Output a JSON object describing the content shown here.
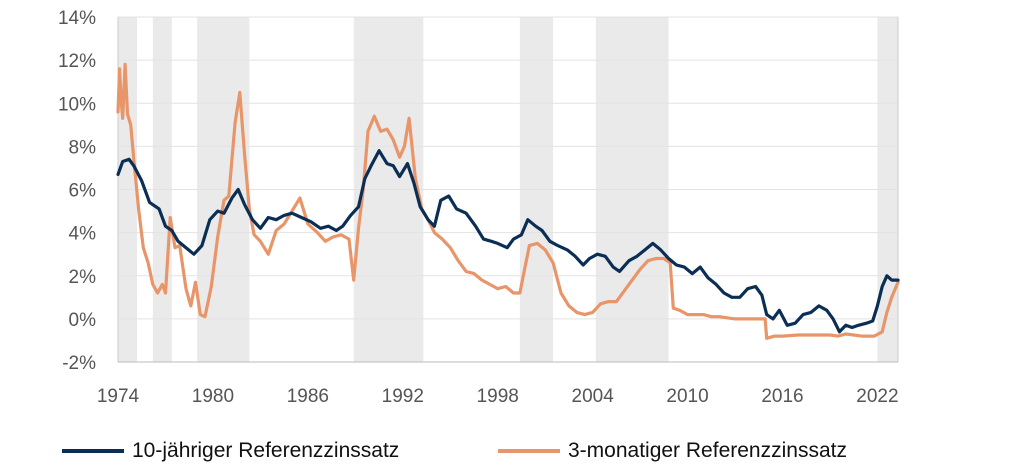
{
  "chart_data": {
    "type": "line",
    "x_ticks": [
      "1974",
      "1980",
      "1986",
      "1992",
      "1998",
      "2004",
      "2010",
      "2016",
      "2022"
    ],
    "y_ticks": [
      "14%",
      "12%",
      "10%",
      "8%",
      "6%",
      "4%",
      "2%",
      "0%",
      "-2%"
    ],
    "xlim": [
      1974,
      2023.3
    ],
    "ylim": [
      -2,
      14
    ],
    "grid": "horizontal",
    "legend_position": "bottom",
    "shaded_periods": [
      [
        1974.0,
        1975.2
      ],
      [
        1976.2,
        1977.4
      ],
      [
        1979.0,
        1982.3
      ],
      [
        1988.9,
        1993.3
      ],
      [
        1999.4,
        2001.5
      ],
      [
        2004.2,
        2008.8
      ],
      [
        2022.0,
        2023.3
      ]
    ],
    "colors": {
      "series1": "#0b2e55",
      "series2": "#e8956a",
      "shade": "#eaeaea",
      "grid": "#e3e3e3",
      "axis": "#cccccc"
    },
    "series": [
      {
        "name": "10-jähriger Referenzzinssatz",
        "x": [
          1974.0,
          1974.3,
          1974.7,
          1975.0,
          1975.5,
          1976.0,
          1976.6,
          1977.0,
          1977.4,
          1977.8,
          1978.3,
          1978.8,
          1979.3,
          1979.8,
          1980.3,
          1980.7,
          1981.2,
          1981.6,
          1982.0,
          1982.5,
          1983.0,
          1983.5,
          1984.0,
          1984.5,
          1985.0,
          1985.6,
          1986.2,
          1986.8,
          1987.3,
          1987.8,
          1988.2,
          1988.7,
          1989.2,
          1989.6,
          1990.0,
          1990.5,
          1991.0,
          1991.4,
          1991.8,
          1992.3,
          1992.7,
          1993.1,
          1993.6,
          1994.0,
          1994.4,
          1994.9,
          1995.4,
          1996.0,
          1996.6,
          1997.1,
          1997.6,
          1998.0,
          1998.6,
          1999.0,
          1999.5,
          1999.9,
          2000.4,
          2000.8,
          2001.3,
          2001.8,
          2002.4,
          2002.9,
          2003.4,
          2003.8,
          2004.3,
          2004.8,
          2005.3,
          2005.7,
          2006.3,
          2006.8,
          2007.3,
          2007.8,
          2008.3,
          2008.8,
          2009.3,
          2009.8,
          2010.3,
          2010.8,
          2011.3,
          2011.8,
          2012.3,
          2012.8,
          2013.3,
          2013.8,
          2014.3,
          2014.7,
          2015.0,
          2015.4,
          2015.8,
          2016.3,
          2016.8,
          2017.3,
          2017.8,
          2018.3,
          2018.8,
          2019.2,
          2019.6,
          2020.0,
          2020.4,
          2020.8,
          2021.3,
          2021.7,
          2022.0,
          2022.3,
          2022.6,
          2022.9,
          2023.3
        ],
        "values": [
          6.7,
          7.3,
          7.4,
          7.1,
          6.4,
          5.4,
          5.1,
          4.3,
          4.1,
          3.6,
          3.3,
          3.0,
          3.4,
          4.6,
          5.0,
          4.9,
          5.6,
          6.0,
          5.3,
          4.6,
          4.2,
          4.7,
          4.6,
          4.8,
          4.9,
          4.7,
          4.5,
          4.2,
          4.3,
          4.1,
          4.3,
          4.8,
          5.2,
          6.5,
          7.1,
          7.8,
          7.2,
          7.1,
          6.6,
          7.2,
          6.3,
          5.2,
          4.6,
          4.3,
          5.5,
          5.7,
          5.1,
          4.9,
          4.3,
          3.7,
          3.6,
          3.5,
          3.3,
          3.7,
          3.9,
          4.6,
          4.3,
          4.1,
          3.6,
          3.4,
          3.2,
          2.9,
          2.5,
          2.8,
          3.0,
          2.9,
          2.4,
          2.2,
          2.7,
          2.9,
          3.2,
          3.5,
          3.2,
          2.8,
          2.5,
          2.4,
          2.1,
          2.4,
          1.9,
          1.6,
          1.2,
          1.0,
          1.0,
          1.4,
          1.5,
          1.1,
          0.2,
          0.0,
          0.4,
          -0.3,
          -0.2,
          0.2,
          0.3,
          0.6,
          0.4,
          0.0,
          -0.6,
          -0.3,
          -0.4,
          -0.3,
          -0.2,
          -0.1,
          0.6,
          1.5,
          2.0,
          1.8,
          1.8
        ]
      },
      {
        "name": "3-monatiger Referenzzinssatz",
        "x": [
          1974.0,
          1974.1,
          1974.2,
          1974.3,
          1974.45,
          1974.6,
          1974.8,
          1975.0,
          1975.3,
          1975.6,
          1975.9,
          1976.2,
          1976.5,
          1976.8,
          1977.0,
          1977.3,
          1977.6,
          1977.9,
          1978.3,
          1978.6,
          1978.9,
          1979.2,
          1979.5,
          1979.9,
          1980.3,
          1980.7,
          1981.0,
          1981.4,
          1981.7,
          1982.0,
          1982.3,
          1982.6,
          1983.0,
          1983.5,
          1984.0,
          1984.5,
          1985.0,
          1985.5,
          1986.0,
          1986.6,
          1987.1,
          1987.6,
          1988.1,
          1988.6,
          1988.9,
          1989.2,
          1989.5,
          1989.8,
          1990.2,
          1990.6,
          1991.0,
          1991.4,
          1991.8,
          1992.1,
          1992.4,
          1992.8,
          1993.2,
          1993.6,
          1994.0,
          1994.5,
          1995.0,
          1995.5,
          1996.0,
          1996.5,
          1997.0,
          1997.5,
          1998.0,
          1998.5,
          1999.0,
          1999.4,
          1999.7,
          2000.0,
          2000.5,
          2001.0,
          2001.5,
          2002.0,
          2002.5,
          2003.0,
          2003.5,
          2004.0,
          2004.5,
          2005.0,
          2005.5,
          2006.0,
          2006.5,
          2007.0,
          2007.5,
          2008.0,
          2008.5,
          2008.9,
          2009.1,
          2009.5,
          2010.0,
          2011.0,
          2011.5,
          2012.0,
          2013.0,
          2014.0,
          2014.9,
          2015.0,
          2015.5,
          2016.0,
          2017.0,
          2018.0,
          2019.0,
          2019.5,
          2020.0,
          2020.5,
          2021.0,
          2021.8,
          2022.3,
          2022.6,
          2022.9,
          2023.3
        ],
        "values": [
          9.6,
          11.6,
          10.1,
          9.3,
          11.8,
          9.5,
          9.0,
          7.4,
          5.1,
          3.3,
          2.6,
          1.6,
          1.2,
          1.6,
          1.2,
          4.7,
          3.3,
          3.4,
          1.4,
          0.6,
          1.7,
          0.2,
          0.1,
          1.5,
          3.8,
          5.5,
          5.7,
          9.1,
          10.5,
          7.6,
          5.1,
          3.9,
          3.6,
          3.0,
          4.1,
          4.4,
          5.0,
          5.6,
          4.4,
          4.0,
          3.6,
          3.8,
          3.9,
          3.7,
          1.8,
          4.2,
          6.0,
          8.7,
          9.4,
          8.7,
          8.8,
          8.3,
          7.5,
          8.0,
          9.3,
          6.5,
          5.1,
          4.6,
          4.0,
          3.7,
          3.3,
          2.7,
          2.2,
          2.1,
          1.8,
          1.6,
          1.4,
          1.5,
          1.2,
          1.2,
          2.3,
          3.4,
          3.5,
          3.2,
          2.6,
          1.2,
          0.6,
          0.3,
          0.2,
          0.3,
          0.7,
          0.8,
          0.8,
          1.3,
          1.8,
          2.3,
          2.7,
          2.8,
          2.8,
          2.6,
          0.5,
          0.4,
          0.2,
          0.2,
          0.1,
          0.1,
          0.0,
          0.0,
          0.0,
          -0.9,
          -0.8,
          -0.8,
          -0.75,
          -0.75,
          -0.75,
          -0.8,
          -0.7,
          -0.75,
          -0.8,
          -0.8,
          -0.6,
          0.3,
          1.0,
          1.7
        ]
      }
    ]
  },
  "legend": [
    {
      "label": "10-jähriger Referenzzinssatz",
      "color": "#0b2e55"
    },
    {
      "label": "3-monatiger Referenzzinssatz",
      "color": "#e8956a"
    }
  ]
}
